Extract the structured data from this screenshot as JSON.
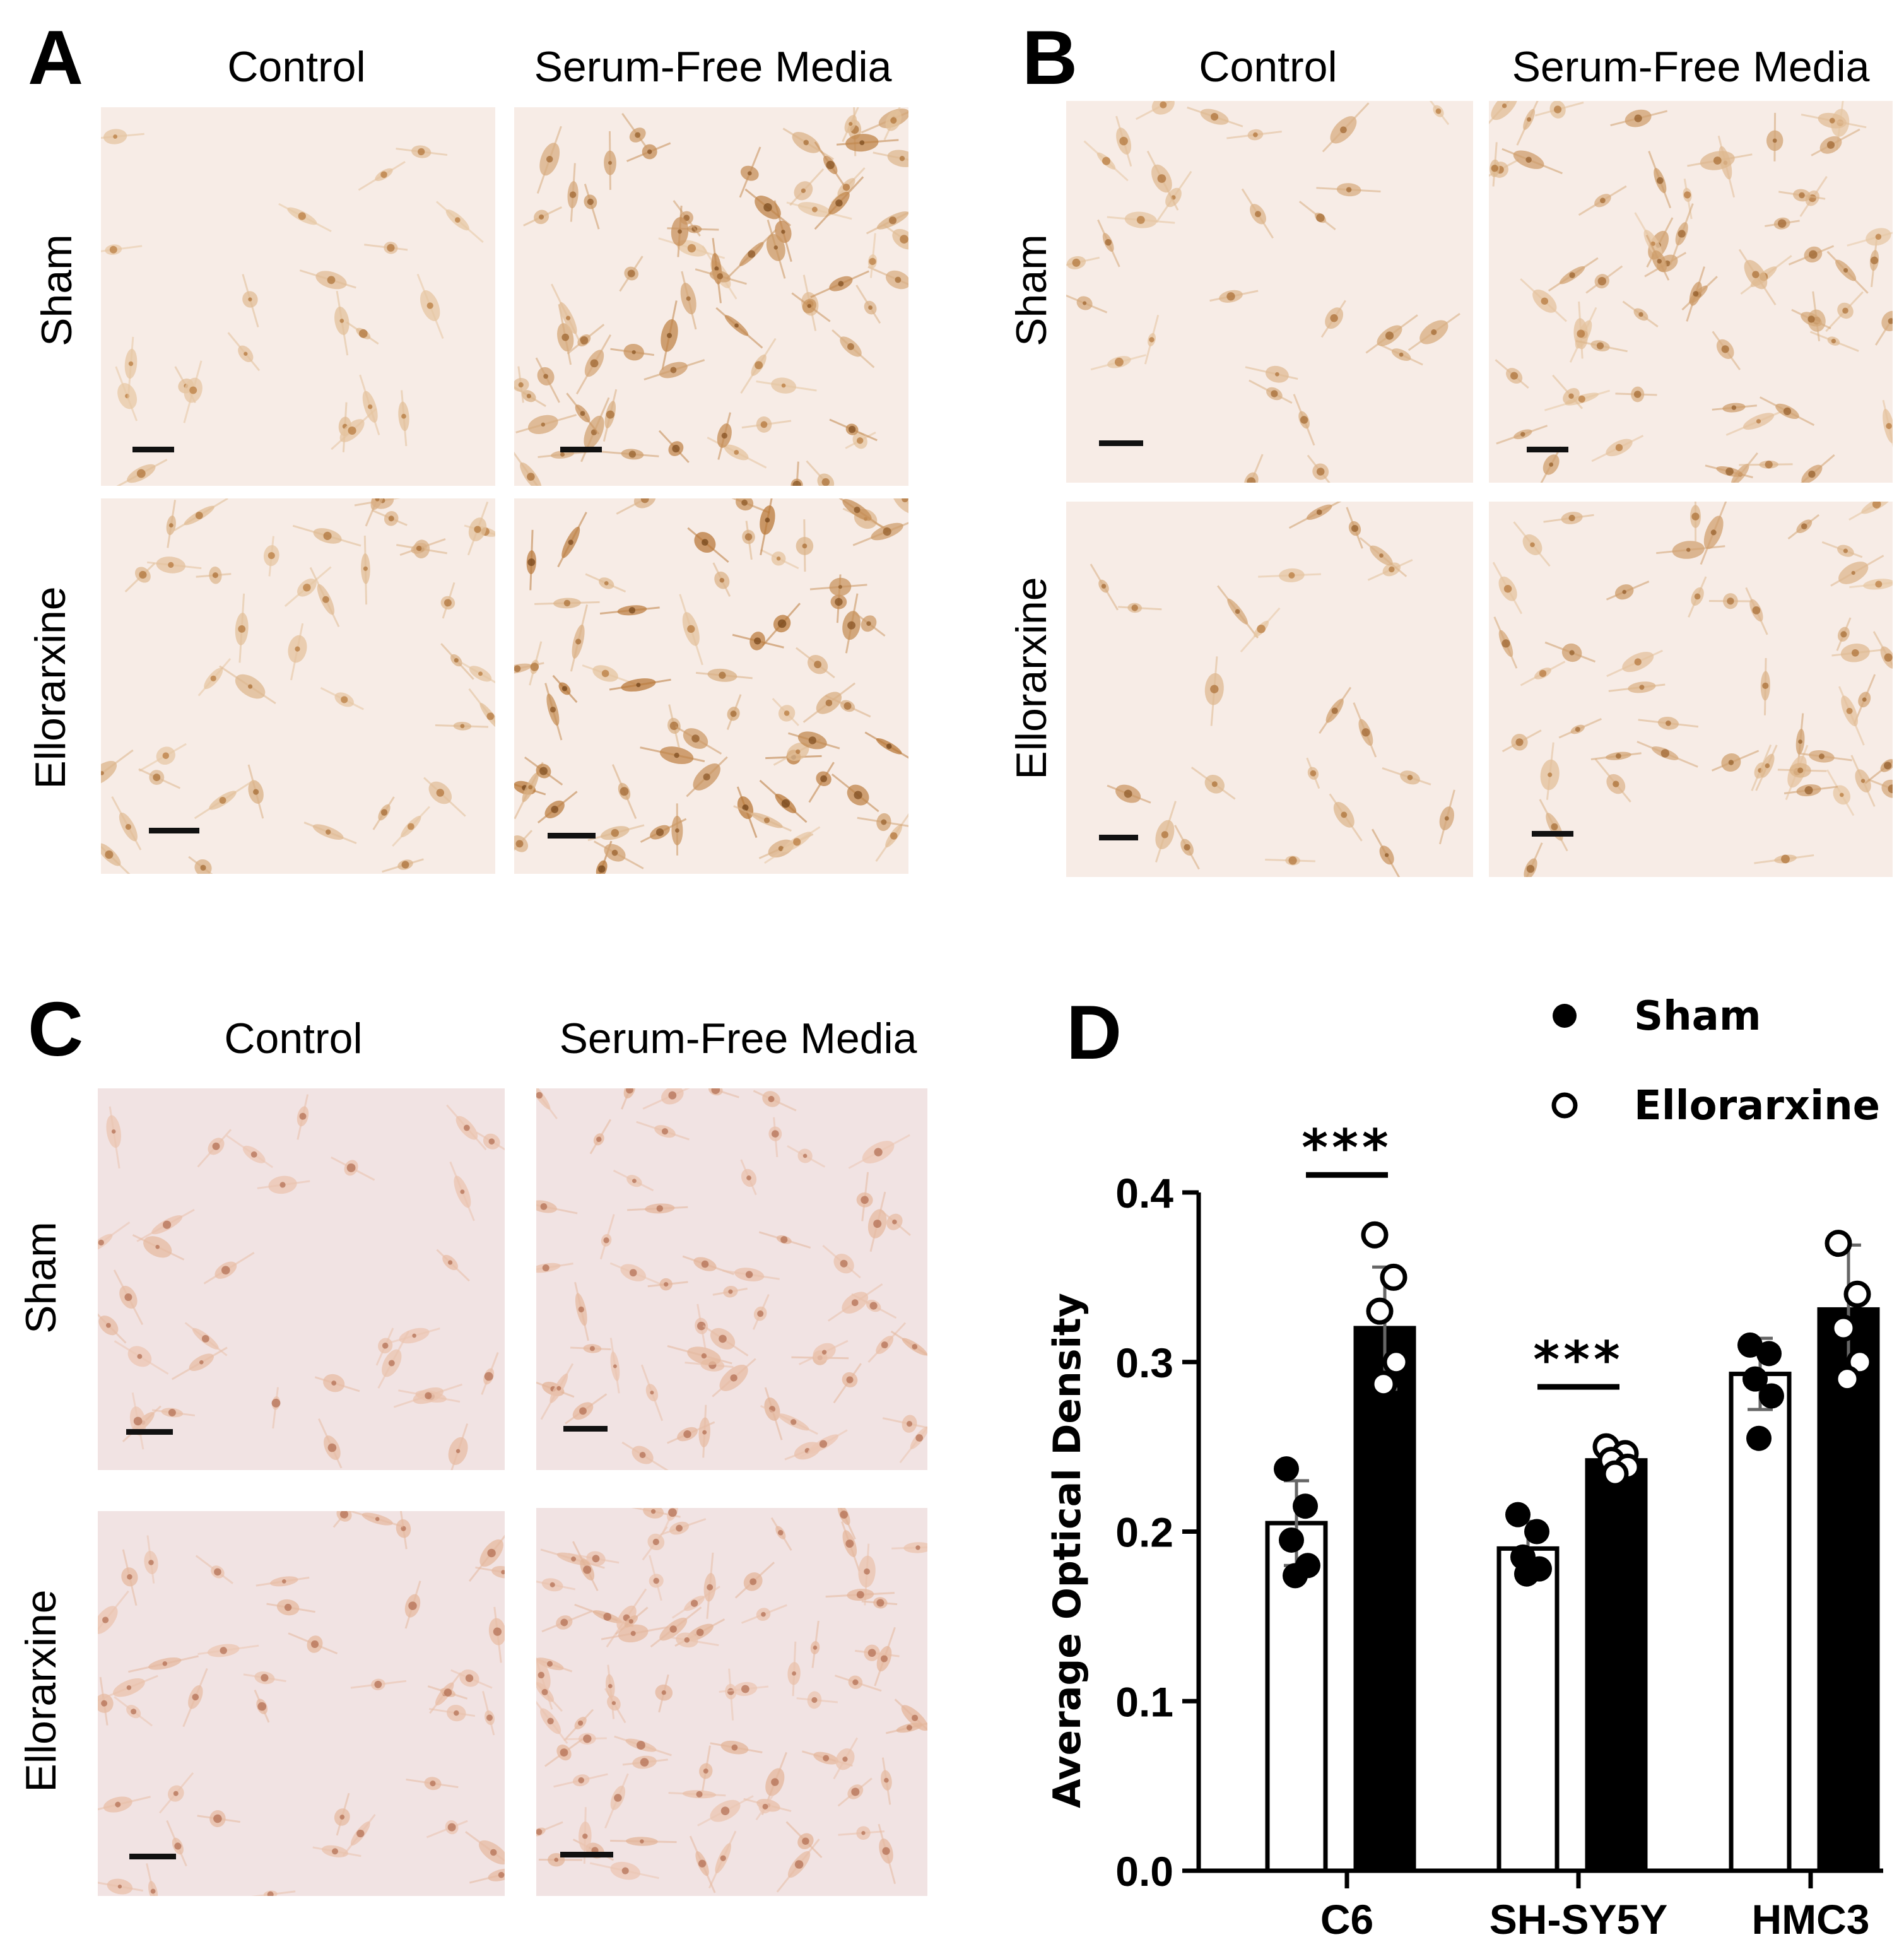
{
  "panels": {
    "A": {
      "letter": "A",
      "col_control": "Control",
      "col_sfm": "Serum-Free Media",
      "row_sham": "Sham",
      "row_ello": "Ellorarxine"
    },
    "B": {
      "letter": "B",
      "col_control": "Control",
      "col_sfm": "Serum-Free Media",
      "row_sham": "Sham",
      "row_ello": "Ellorarxine"
    },
    "C": {
      "letter": "C",
      "col_control": "Control",
      "col_sfm": "Serum-Free Media",
      "row_sham": "Sham",
      "row_ello": "Ellorarxine"
    },
    "D": {
      "letter": "D"
    }
  },
  "colors": {
    "micro_bg_AB": "#f7ece6",
    "micro_bg_C": "#f1e3e3",
    "cell_light": "#e8c9a6",
    "cell_dark": "#b9793a",
    "cell_C": "#d9a07a"
  },
  "chart_data": {
    "type": "bar",
    "ylabel": "Average Optical Density",
    "ylim": [
      0.0,
      0.4
    ],
    "yticks": [
      "0.0",
      "0.1",
      "0.2",
      "0.3",
      "0.4"
    ],
    "categories": [
      "C6",
      "SH-SY5Y",
      "HMC3"
    ],
    "legend": {
      "placement": "top-right"
    },
    "series": [
      {
        "name": "Sham",
        "marker": "filled-circle",
        "bar_fill": "#ffffff",
        "values": [
          0.205,
          0.19,
          0.293
        ],
        "errors": [
          0.025,
          0.016,
          0.021
        ],
        "points": [
          [
            0.237,
            0.215,
            0.195,
            0.18,
            0.174
          ],
          [
            0.21,
            0.2,
            0.185,
            0.178,
            0.175
          ],
          [
            0.31,
            0.305,
            0.29,
            0.28,
            0.255
          ]
        ]
      },
      {
        "name": "Ellorarxine",
        "marker": "open-circle",
        "bar_fill": "#000000",
        "values": [
          0.32,
          0.242,
          0.331
        ],
        "errors": [
          0.036,
          0.008,
          0.038
        ],
        "points": [
          [
            0.375,
            0.35,
            0.33,
            0.3,
            0.287
          ],
          [
            0.25,
            0.246,
            0.242,
            0.238,
            0.234
          ],
          [
            0.37,
            0.34,
            0.32,
            0.3,
            0.29
          ]
        ]
      }
    ],
    "significance": [
      {
        "category": "C6",
        "label": "***"
      },
      {
        "category": "SH-SY5Y",
        "label": "***"
      }
    ]
  }
}
